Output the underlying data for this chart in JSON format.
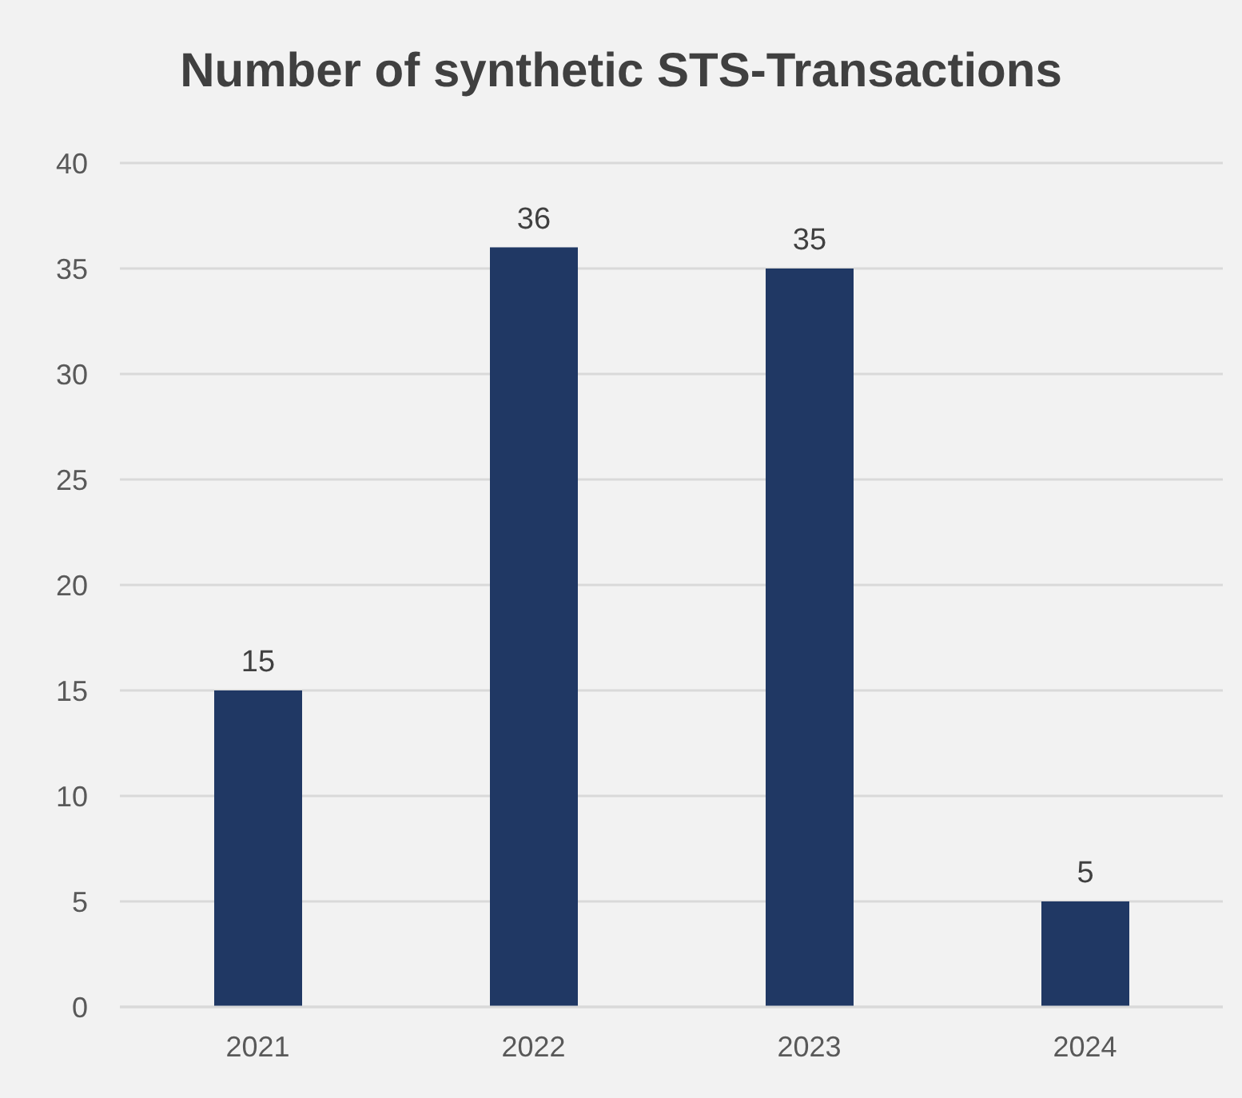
{
  "chart_data": {
    "type": "bar",
    "title": "Number of synthetic STS-Transactions",
    "categories": [
      "2021",
      "2022",
      "2023",
      "2024"
    ],
    "values": [
      15,
      36,
      35,
      5
    ],
    "color": "#203864",
    "ylim": [
      0,
      40
    ],
    "yticks": [
      0,
      5,
      10,
      15,
      20,
      25,
      30,
      35,
      40
    ],
    "grid": "y",
    "data_labels": true
  }
}
